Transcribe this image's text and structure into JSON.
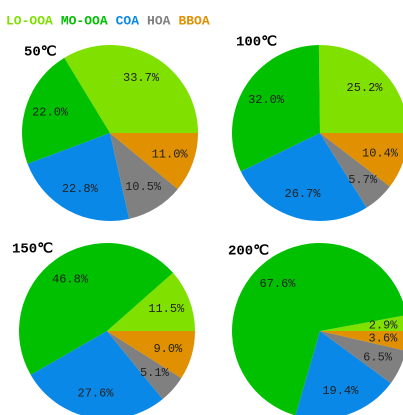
{
  "chart_data": [
    {
      "type": "pie",
      "title": "50℃",
      "categories": [
        "LO-OOA",
        "MO-OOA",
        "COA",
        "HOA",
        "BBOA"
      ],
      "colors": [
        "#80e000",
        "#00c000",
        "#0a88e8",
        "#808080",
        "#e09000"
      ],
      "values": [
        33.7,
        22.0,
        22.8,
        10.5,
        11.0
      ],
      "value_labels": [
        "33.7%",
        "22.0%",
        "22.8%",
        "10.5%",
        "11.0%"
      ]
    },
    {
      "type": "pie",
      "title": "100℃",
      "categories": [
        "LO-OOA",
        "MO-OOA",
        "COA",
        "HOA",
        "BBOA"
      ],
      "colors": [
        "#80e000",
        "#00c000",
        "#0a88e8",
        "#808080",
        "#e09000"
      ],
      "values": [
        25.2,
        32.0,
        26.7,
        5.7,
        10.4
      ],
      "value_labels": [
        "25.2%",
        "32.0%",
        "26.7%",
        "5.7%",
        "10.4%"
      ]
    },
    {
      "type": "pie",
      "title": "150℃",
      "categories": [
        "LO-OOA",
        "MO-OOA",
        "COA",
        "HOA",
        "BBOA"
      ],
      "colors": [
        "#80e000",
        "#00c000",
        "#0a88e8",
        "#808080",
        "#e09000"
      ],
      "values": [
        11.5,
        46.8,
        27.6,
        5.1,
        9.0
      ],
      "value_labels": [
        "11.5%",
        "46.8%",
        "27.6%",
        "5.1%",
        "9.0%"
      ]
    },
    {
      "type": "pie",
      "title": "200℃",
      "categories": [
        "LO-OOA",
        "MO-OOA",
        "COA",
        "HOA",
        "BBOA"
      ],
      "colors": [
        "#80e000",
        "#00c000",
        "#0a88e8",
        "#808080",
        "#e09000"
      ],
      "values": [
        2.9,
        67.6,
        19.4,
        6.5,
        3.6
      ],
      "value_labels": [
        "2.9%",
        "67.6%",
        "19.4%",
        "6.5%",
        "3.6%"
      ]
    }
  ]
}
